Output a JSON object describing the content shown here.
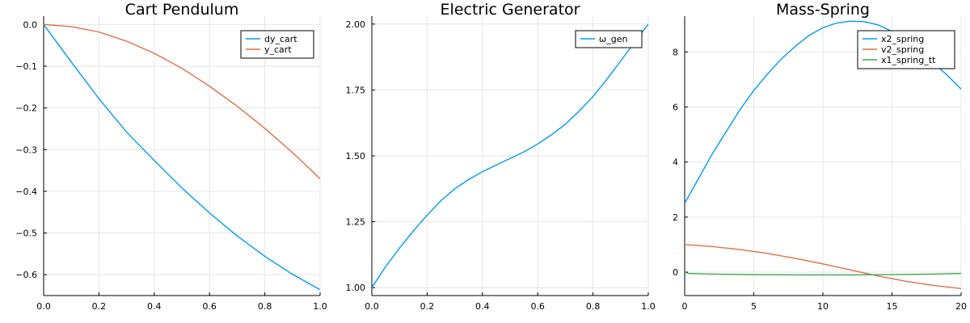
{
  "chart_data": [
    {
      "type": "line",
      "title": "Cart Pendulum",
      "xlabel": "",
      "ylabel": "",
      "xlim": [
        0,
        1
      ],
      "ylim": [
        -0.65,
        0.02
      ],
      "xticks": [
        0.0,
        0.2,
        0.4,
        0.6,
        0.8,
        1.0
      ],
      "xtick_labels": [
        "0.0",
        "0.2",
        "0.4",
        "0.6",
        "0.8",
        "1.0"
      ],
      "yticks": [
        0.0,
        -0.1,
        -0.2,
        -0.3,
        -0.4,
        -0.5,
        -0.6
      ],
      "ytick_labels": [
        "0.0",
        "−0.1",
        "−0.2",
        "−0.3",
        "−0.4",
        "−0.5",
        "−0.6"
      ],
      "grid": true,
      "legend_position": "top-right",
      "series": [
        {
          "name": "dy_cart",
          "color": "#009AFA",
          "x": [
            0,
            0.1,
            0.2,
            0.3,
            0.4,
            0.5,
            0.6,
            0.7,
            0.8,
            0.9,
            1.0
          ],
          "y": [
            0,
            -0.09,
            -0.178,
            -0.258,
            -0.326,
            -0.392,
            -0.452,
            -0.507,
            -0.556,
            -0.599,
            -0.636
          ]
        },
        {
          "name": "y_cart",
          "color": "#E36F47",
          "x": [
            0,
            0.1,
            0.2,
            0.3,
            0.4,
            0.5,
            0.6,
            0.7,
            0.8,
            0.9,
            1.0
          ],
          "y": [
            0,
            -0.005,
            -0.018,
            -0.04,
            -0.069,
            -0.105,
            -0.148,
            -0.196,
            -0.249,
            -0.307,
            -0.37
          ]
        }
      ]
    },
    {
      "type": "line",
      "title": "Electric Generator",
      "xlabel": "",
      "ylabel": "",
      "xlim": [
        0,
        1
      ],
      "ylim": [
        0.97,
        2.03
      ],
      "xticks": [
        0.0,
        0.2,
        0.4,
        0.6,
        0.8,
        1.0
      ],
      "xtick_labels": [
        "0.0",
        "0.2",
        "0.4",
        "0.6",
        "0.8",
        "1.0"
      ],
      "yticks": [
        1.0,
        1.25,
        1.5,
        1.75,
        2.0
      ],
      "ytick_labels": [
        "1.00",
        "1.25",
        "1.50",
        "1.75",
        "2.00"
      ],
      "grid": true,
      "legend_position": "top-right",
      "series": [
        {
          "name": "ω_gen",
          "color": "#009AFA",
          "x": [
            0,
            0.05,
            0.1,
            0.15,
            0.2,
            0.25,
            0.3,
            0.35,
            0.4,
            0.45,
            0.5,
            0.55,
            0.6,
            0.65,
            0.7,
            0.75,
            0.8,
            0.85,
            0.9,
            0.95,
            1.0
          ],
          "y": [
            1.0,
            1.08,
            1.15,
            1.215,
            1.275,
            1.33,
            1.375,
            1.41,
            1.44,
            1.465,
            1.49,
            1.515,
            1.545,
            1.58,
            1.62,
            1.67,
            1.725,
            1.79,
            1.86,
            1.93,
            2.0
          ]
        }
      ]
    },
    {
      "type": "line",
      "title": "Mass-Spring",
      "xlabel": "",
      "ylabel": "",
      "xlim": [
        0,
        20
      ],
      "ylim": [
        -0.85,
        9.3
      ],
      "xticks": [
        0,
        5,
        10,
        15,
        20
      ],
      "xtick_labels": [
        "0",
        "5",
        "10",
        "15",
        "20"
      ],
      "yticks": [
        0,
        2,
        4,
        6,
        8
      ],
      "ytick_labels": [
        "0",
        "2",
        "4",
        "6",
        "8"
      ],
      "grid": true,
      "legend_position": "top-right",
      "series": [
        {
          "name": "x2_spring",
          "color": "#009AFA",
          "x": [
            0,
            1,
            2,
            3,
            4,
            5,
            6,
            7,
            8,
            9,
            10,
            11,
            12,
            13,
            14,
            15,
            16,
            17,
            18,
            19,
            20
          ],
          "y": [
            2.5,
            3.4,
            4.3,
            5.1,
            5.9,
            6.6,
            7.2,
            7.75,
            8.2,
            8.6,
            8.88,
            9.05,
            9.12,
            9.1,
            8.98,
            8.75,
            8.45,
            8.05,
            7.6,
            7.15,
            6.65
          ]
        },
        {
          "name": "v2_spring",
          "color": "#E36F47",
          "x": [
            0,
            2,
            4,
            6,
            8,
            10,
            12,
            14,
            16,
            18,
            20
          ],
          "y": [
            1.0,
            0.93,
            0.82,
            0.68,
            0.5,
            0.3,
            0.08,
            -0.14,
            -0.33,
            -0.48,
            -0.6
          ]
        },
        {
          "name": "x1_spring_tt",
          "color": "#3EA44E",
          "x": [
            0,
            0.3,
            2,
            5,
            8,
            10,
            12,
            15,
            18,
            20
          ],
          "y": [
            0.0,
            -0.05,
            -0.07,
            -0.09,
            -0.1,
            -0.1,
            -0.1,
            -0.09,
            -0.07,
            -0.05
          ]
        }
      ]
    }
  ]
}
